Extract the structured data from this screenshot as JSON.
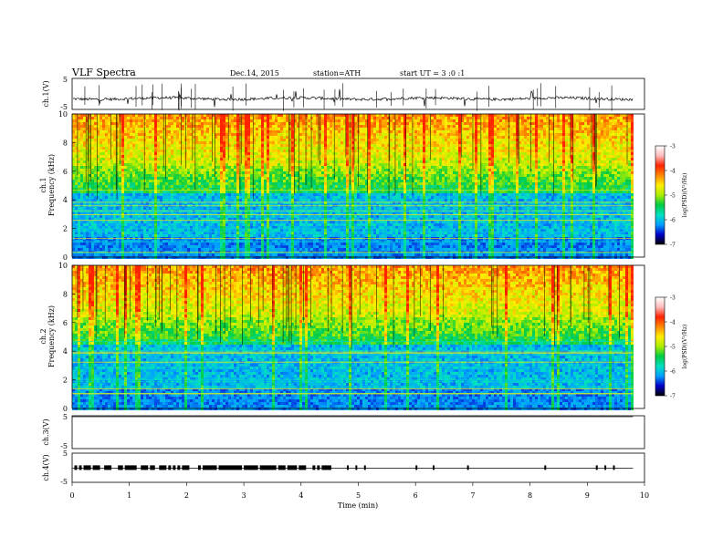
{
  "header": {
    "title": "VLF  Spectra",
    "date": "Dec.14, 2015",
    "station": "station=ATH",
    "start": "start  UT  =   3  :0  :1"
  },
  "colors": {
    "spectrogram_background": "#0000a0",
    "trace": "#000000",
    "colorbar": [
      "#000000",
      "#0000cc",
      "#00a0ff",
      "#00e0c0",
      "#00cc44",
      "#aaee00",
      "#ffee00",
      "#ff8800",
      "#ff2200",
      "#ffbbbb",
      "#ffffff"
    ]
  },
  "chart_data": [
    {
      "type": "line",
      "name": "ch1",
      "ylabel": "ch.1(V)",
      "yticks": [
        "5",
        "-5"
      ],
      "ylim": [
        -5,
        5
      ],
      "xlim": [
        0,
        10
      ],
      "baseline": -1.5,
      "description_level": "noisy trace around -1.5 V with spikes"
    },
    {
      "type": "heatmap",
      "name": "ch1-spectrogram",
      "ylabel_top": "ch.1",
      "ylabel": "Frequency  (kHz)",
      "yticks": [
        "0",
        "2",
        "4",
        "6",
        "8",
        "10"
      ],
      "ylim": [
        0,
        10
      ],
      "xlim": [
        0,
        10
      ],
      "data_end_min": 9.8,
      "colorbar": {
        "label": "log(PSD)(V²/Hz)",
        "ticks": [
          "-3",
          "-4",
          "-5",
          "-6",
          "-7"
        ],
        "range": [
          -7,
          -3
        ]
      }
    },
    {
      "type": "heatmap",
      "name": "ch2-spectrogram",
      "ylabel_top": "ch.2",
      "ylabel": "Frequency  (kHz)",
      "yticks": [
        "0",
        "2",
        "4",
        "6",
        "8",
        "10"
      ],
      "ylim": [
        0,
        10
      ],
      "xlim": [
        0,
        10
      ],
      "data_end_min": 9.8,
      "colorbar": {
        "label": "log(PSD)(V²/Hz)",
        "ticks": [
          "-3",
          "-4",
          "-5",
          "-6",
          "-7"
        ],
        "range": [
          -7,
          -3
        ]
      }
    },
    {
      "type": "line",
      "name": "ch3",
      "ylabel": "ch.3(V)",
      "yticks": [
        "5",
        "-5"
      ],
      "ylim": [
        -5,
        5
      ],
      "xlim": [
        0,
        10
      ],
      "baseline": 5
    },
    {
      "type": "line",
      "name": "ch4",
      "ylabel": "ch.4(V)",
      "yticks": [
        "5",
        "-5"
      ],
      "ylim": [
        -5,
        5
      ],
      "xlim": [
        0,
        10
      ],
      "baseline": 0.5
    }
  ],
  "xaxis": {
    "label": "Time  (min)",
    "ticks": [
      "0",
      "1",
      "2",
      "3",
      "4",
      "5",
      "6",
      "7",
      "8",
      "9",
      "10"
    ],
    "range": [
      0,
      10
    ]
  }
}
